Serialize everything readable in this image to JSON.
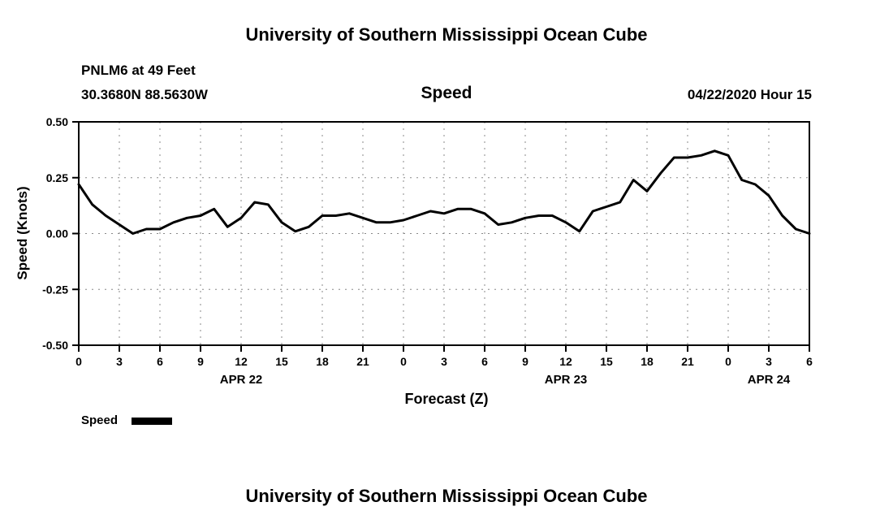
{
  "header": {
    "title": "University of Southern Mississippi Ocean Cube",
    "station": "PNLM6 at 49 Feet",
    "location": "30.3680N 88.5630W",
    "datetime": "04/22/2020 Hour 15"
  },
  "chart_data": {
    "type": "line",
    "title": "Speed",
    "xlabel": "Forecast (Z)",
    "ylabel": "Speed (Knots)",
    "ylim": [
      -0.5,
      0.5
    ],
    "yticks": [
      -0.5,
      -0.25,
      0,
      0.25,
      0.5
    ],
    "ytick_labels": [
      "-0.50",
      "-0.25",
      "0.00",
      "0.25",
      "0.50"
    ],
    "xlim_hours": [
      0,
      54
    ],
    "xtick_hours": [
      0,
      3,
      6,
      9,
      12,
      15,
      18,
      21,
      24,
      27,
      30,
      33,
      36,
      39,
      42,
      45,
      48,
      51,
      54
    ],
    "xtick_labels": [
      "0",
      "3",
      "6",
      "9",
      "12",
      "15",
      "18",
      "21",
      "0",
      "3",
      "6",
      "9",
      "12",
      "15",
      "18",
      "21",
      "0",
      "3",
      "6"
    ],
    "date_labels": [
      {
        "label": "APR 22",
        "hour": 12
      },
      {
        "label": "APR 23",
        "hour": 36
      },
      {
        "label": "APR 24",
        "hour": 51
      }
    ],
    "grid": "dashed",
    "line_color": "#000000",
    "series": [
      {
        "name": "Speed",
        "x": [
          0,
          1,
          2,
          3,
          4,
          5,
          6,
          7,
          8,
          9,
          10,
          11,
          12,
          13,
          14,
          15,
          16,
          17,
          18,
          19,
          20,
          21,
          22,
          23,
          24,
          25,
          26,
          27,
          28,
          29,
          30,
          31,
          32,
          33,
          34,
          35,
          36,
          37,
          38,
          39,
          40,
          41,
          42,
          43,
          44,
          45,
          46,
          47,
          48,
          49,
          50,
          51,
          52,
          53,
          54
        ],
        "values": [
          0.22,
          0.13,
          0.08,
          0.04,
          0.0,
          0.02,
          0.02,
          0.05,
          0.07,
          0.08,
          0.11,
          0.03,
          0.07,
          0.14,
          0.13,
          0.05,
          0.01,
          0.03,
          0.08,
          0.08,
          0.09,
          0.07,
          0.05,
          0.05,
          0.06,
          0.08,
          0.1,
          0.09,
          0.11,
          0.11,
          0.09,
          0.04,
          0.05,
          0.07,
          0.08,
          0.08,
          0.05,
          0.01,
          0.1,
          0.12,
          0.14,
          0.24,
          0.19,
          0.27,
          0.34,
          0.34,
          0.35,
          0.37,
          0.35,
          0.24,
          0.22,
          0.17,
          0.08,
          0.02,
          0.0
        ]
      }
    ]
  },
  "legend": {
    "label": "Speed",
    "color": "#000000"
  },
  "footer": {
    "title": "University of Southern Mississippi Ocean Cube"
  }
}
